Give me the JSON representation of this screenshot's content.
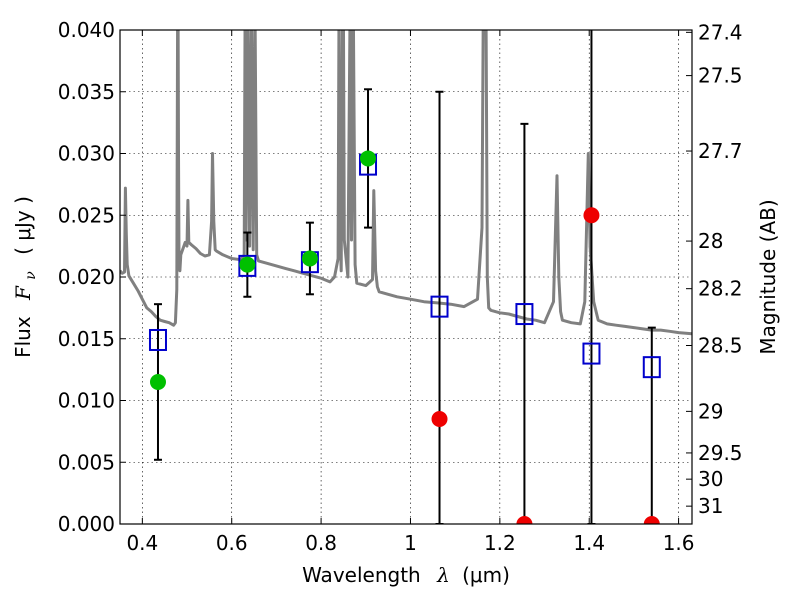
{
  "chart_data": {
    "type": "scatter",
    "xlabel_main": "Wavelength",
    "xlabel_symbol": "λ",
    "xlabel_unit": "(μm)",
    "ylabel_main": "Flux",
    "ylabel_symbol": "F",
    "ylabel_subscript": "ν",
    "ylabel_unit": "( μJy )",
    "ylabel_right": "Magnitude (AB)",
    "xlim": [
      0.35,
      1.63
    ],
    "ylim": [
      0.0,
      0.04
    ],
    "grid": true,
    "x_ticks": [
      {
        "value": 0.4,
        "label": "0.4"
      },
      {
        "value": 0.6,
        "label": "0.6"
      },
      {
        "value": 0.8,
        "label": "0.8"
      },
      {
        "value": 1.0,
        "label": "1"
      },
      {
        "value": 1.2,
        "label": "1.2"
      },
      {
        "value": 1.4,
        "label": "1.4"
      },
      {
        "value": 1.6,
        "label": "1.6"
      }
    ],
    "y_ticks": [
      {
        "value": 0.0,
        "label": "0.000"
      },
      {
        "value": 0.005,
        "label": "0.005"
      },
      {
        "value": 0.01,
        "label": "0.010"
      },
      {
        "value": 0.015,
        "label": "0.015"
      },
      {
        "value": 0.02,
        "label": "0.020"
      },
      {
        "value": 0.025,
        "label": "0.025"
      },
      {
        "value": 0.03,
        "label": "0.030"
      },
      {
        "value": 0.035,
        "label": "0.035"
      },
      {
        "value": 0.04,
        "label": "0.040"
      }
    ],
    "right_ticks": [
      {
        "mag": 27.4,
        "label": "27.4"
      },
      {
        "mag": 27.5,
        "label": "27.5"
      },
      {
        "mag": 27.7,
        "label": "27.7"
      },
      {
        "mag": 28.0,
        "label": "28"
      },
      {
        "mag": 28.2,
        "label": "28.2"
      },
      {
        "mag": 28.5,
        "label": "28.5"
      },
      {
        "mag": 29.0,
        "label": "29"
      },
      {
        "mag": 29.5,
        "label": "29.5"
      },
      {
        "mag": 30.0,
        "label": "30"
      },
      {
        "mag": 31.0,
        "label": "31"
      }
    ],
    "series": [
      {
        "name": "model_spectrum",
        "kind": "line",
        "color": "#808080",
        "x": [
          0.35,
          0.355,
          0.36,
          0.362,
          0.364,
          0.366,
          0.37,
          0.38,
          0.39,
          0.4,
          0.41,
          0.42,
          0.43,
          0.44,
          0.45,
          0.46,
          0.465,
          0.47,
          0.474,
          0.477,
          0.478,
          0.479,
          0.48,
          0.481,
          0.482,
          0.484,
          0.486,
          0.49,
          0.496,
          0.5,
          0.502,
          0.504,
          0.51,
          0.52,
          0.53,
          0.54,
          0.55,
          0.555,
          0.557,
          0.56,
          0.563,
          0.566,
          0.58,
          0.6,
          0.62,
          0.628,
          0.63,
          0.632,
          0.636,
          0.64,
          0.644,
          0.648,
          0.652,
          0.656,
          0.66,
          0.67,
          0.68,
          0.7,
          0.72,
          0.74,
          0.76,
          0.78,
          0.8,
          0.82,
          0.83,
          0.838,
          0.84,
          0.842,
          0.845,
          0.848,
          0.85,
          0.852,
          0.86,
          0.865,
          0.868,
          0.872,
          0.876,
          0.88,
          0.9,
          0.915,
          0.918,
          0.922,
          0.926,
          0.93,
          0.95,
          0.97,
          1.0,
          1.03,
          1.06,
          1.09,
          1.12,
          1.15,
          1.16,
          1.163,
          1.166,
          1.169,
          1.172,
          1.175,
          1.18,
          1.2,
          1.22,
          1.24,
          1.26,
          1.28,
          1.3,
          1.32,
          1.328,
          1.332,
          1.336,
          1.34,
          1.36,
          1.38,
          1.39,
          1.398,
          1.402,
          1.41,
          1.42,
          1.44,
          1.46,
          1.48,
          1.5,
          1.52,
          1.54,
          1.56,
          1.58,
          1.6,
          1.63
        ],
        "y": [
          0.0205,
          0.0203,
          0.0204,
          0.0272,
          0.0235,
          0.021,
          0.0201,
          0.0195,
          0.0189,
          0.0182,
          0.0175,
          0.0172,
          0.0168,
          0.0165,
          0.0164,
          0.0163,
          0.0162,
          0.0161,
          0.0163,
          0.019,
          0.03,
          0.041,
          0.041,
          0.03,
          0.0215,
          0.0205,
          0.0218,
          0.0222,
          0.0228,
          0.0225,
          0.0262,
          0.0228,
          0.0226,
          0.0223,
          0.0219,
          0.0217,
          0.0218,
          0.0245,
          0.03,
          0.0245,
          0.0222,
          0.0221,
          0.0218,
          0.0215,
          0.0214,
          0.0218,
          0.042,
          0.023,
          0.042,
          0.0225,
          0.042,
          0.0222,
          0.042,
          0.0218,
          0.0213,
          0.0212,
          0.0211,
          0.0209,
          0.0207,
          0.0205,
          0.0203,
          0.0201,
          0.0199,
          0.0196,
          0.02,
          0.0215,
          0.042,
          0.024,
          0.0205,
          0.042,
          0.042,
          0.023,
          0.02,
          0.042,
          0.023,
          0.042,
          0.021,
          0.0195,
          0.0193,
          0.0198,
          0.027,
          0.0205,
          0.0192,
          0.0188,
          0.0186,
          0.0184,
          0.0182,
          0.018,
          0.0179,
          0.0178,
          0.0176,
          0.0182,
          0.024,
          0.042,
          0.042,
          0.042,
          0.02,
          0.0175,
          0.0173,
          0.0171,
          0.017,
          0.0168,
          0.0166,
          0.0165,
          0.0163,
          0.018,
          0.0282,
          0.02,
          0.0172,
          0.0165,
          0.0163,
          0.0162,
          0.018,
          0.03,
          0.0225,
          0.018,
          0.0165,
          0.0162,
          0.0161,
          0.016,
          0.0159,
          0.0158,
          0.0157,
          0.0157,
          0.0156,
          0.0155,
          0.0154
        ]
      },
      {
        "name": "model_photometry",
        "kind": "open-square",
        "color": "#0000cc",
        "x": [
          0.435,
          0.635,
          0.775,
          0.905,
          1.065,
          1.255,
          1.405,
          1.54
        ],
        "y": [
          0.0149,
          0.0209,
          0.0212,
          0.0291,
          0.0176,
          0.017,
          0.0138,
          0.0127
        ]
      },
      {
        "name": "detections",
        "kind": "filled-circle",
        "color": "#00c000",
        "x": [
          0.435,
          0.635,
          0.775,
          0.905
        ],
        "y": [
          0.0115,
          0.021,
          0.0215,
          0.0296
        ],
        "yerr": [
          0.0063,
          0.0026,
          0.0029,
          0.0056
        ]
      },
      {
        "name": "non_detections",
        "kind": "filled-circle",
        "color": "#ee0000",
        "x": [
          1.065,
          1.255,
          1.405,
          1.54
        ],
        "y": [
          0.0085,
          0.0,
          0.025,
          0.0
        ],
        "err_low": [
          0.0085,
          0.0,
          0.025,
          0.0
        ],
        "err_high": [
          0.0265,
          0.0324,
          0.042,
          0.0159
        ]
      }
    ]
  }
}
